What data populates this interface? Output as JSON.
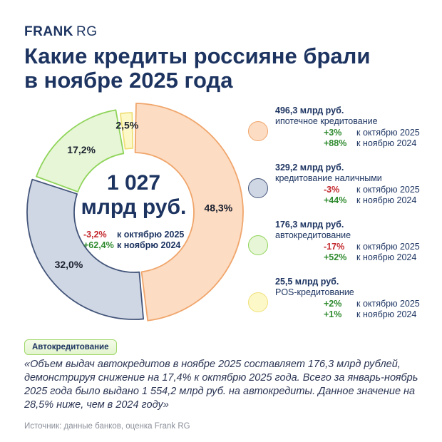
{
  "logo": {
    "bold": "FRANK",
    "light": "RG"
  },
  "title_line1": "Какие кредиты россияне брали",
  "title_line2": "в ноябре 2025 года",
  "center": {
    "value": "1 027",
    "unit": "млрд руб.",
    "mom": "-3,2%",
    "mom_label": "к октябрю 2025",
    "yoy": "+62,4%",
    "yoy_label": "к ноябрю 2024"
  },
  "chart_data": {
    "type": "pie",
    "title": "Какие кредиты россияне брали в ноябре 2025 года",
    "total": "1 027 млрд руб.",
    "slices": [
      {
        "name": "ипотечное кредитование",
        "share": 48.3,
        "label": "48,3%",
        "amount": "496,3 млрд руб.",
        "mom": "+3%",
        "yoy": "+88%",
        "fill": "#fcdcc2",
        "stroke": "#f0a56b"
      },
      {
        "name": "кредитование наличными",
        "share": 32.0,
        "label": "32,0%",
        "amount": "329,2 млрд руб.",
        "mom": "-3%",
        "yoy": "+44%",
        "fill": "#d0d7e4",
        "stroke": "#43557a"
      },
      {
        "name": "автокредитование",
        "share": 17.2,
        "label": "17,2%",
        "amount": "176,3 млрд руб.",
        "mom": "-17%",
        "yoy": "+52%",
        "fill": "#e7f6d6",
        "stroke": "#8fd45a"
      },
      {
        "name": "POS-кредитование",
        "share": 2.5,
        "label": "2,5%",
        "amount": "25,5 млрд руб.",
        "mom": "+2%",
        "yoy": "+1%",
        "fill": "#fdf8c8",
        "stroke": "#efe07a"
      }
    ]
  },
  "legend_labels": {
    "mom": "к октябрю 2025",
    "yoy": "к ноябрю 2024"
  },
  "tag": "Автокредитование",
  "quote": "«Объем выдач автокредитов в ноябре 2025 составляет 176,3 млрд рублей, демонстрируя снижение на 17,4% к октябрю 2025 года. Всего за январь-ноябрь 2025 года было выдано 1 554,2 млрд руб. на автокредиты. Данное значение на 28,5% ниже, чем в 2024 году»",
  "source": "Источник: данные банков, оценка Frank RG"
}
